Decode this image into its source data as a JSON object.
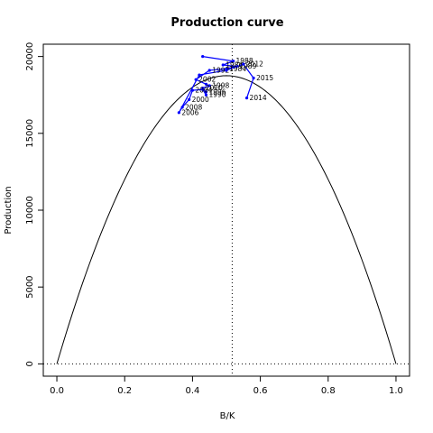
{
  "chart_data": {
    "type": "line",
    "title": "Production curve",
    "xlabel": "B/K",
    "ylabel": "Production",
    "xlim": [
      -0.04,
      1.04
    ],
    "ylim": [
      -800,
      20800
    ],
    "x_ticks": [
      0.0,
      0.2,
      0.4,
      0.6,
      0.8,
      1.0
    ],
    "x_tick_labels": [
      "0.0",
      "0.2",
      "0.4",
      "0.6",
      "0.8",
      "1.0"
    ],
    "y_ticks": [
      0,
      5000,
      10000,
      15000,
      20000
    ],
    "y_tick_labels": [
      "0",
      "5000",
      "10000",
      "15000",
      "20000"
    ],
    "grid": false,
    "reference_lines": {
      "vertical_x": 0.517,
      "horizontal_y": 0
    },
    "production_curve": {
      "shape": "parabola",
      "peak_y": 18750,
      "x_range": [
        0,
        1
      ],
      "color": "#000000"
    },
    "series": [
      {
        "color": "#0000ff",
        "points": [
          {
            "x": 0.43,
            "y": 20000,
            "label": ""
          },
          {
            "x": 0.52,
            "y": 19700,
            "label": "1988"
          },
          {
            "x": 0.49,
            "y": 19450,
            "label": "1986"
          },
          {
            "x": 0.53,
            "y": 19350,
            "label": "1989"
          },
          {
            "x": 0.5,
            "y": 19200,
            "label": "1984"
          },
          {
            "x": 0.45,
            "y": 19100,
            "label": "1992"
          },
          {
            "x": 0.41,
            "y": 18500,
            "label": "2002"
          },
          {
            "x": 0.44,
            "y": 18200,
            "label": ""
          },
          {
            "x": 0.45,
            "y": 18100,
            "label": "1998"
          },
          {
            "x": 0.43,
            "y": 17950,
            "label": "2010"
          },
          {
            "x": 0.44,
            "y": 17700,
            "label": "1996"
          },
          {
            "x": 0.44,
            "y": 17500,
            "label": "1990"
          },
          {
            "x": 0.43,
            "y": 17850,
            "label": ""
          },
          {
            "x": 0.4,
            "y": 17800,
            "label": "2004"
          },
          {
            "x": 0.39,
            "y": 17200,
            "label": "2000"
          },
          {
            "x": 0.37,
            "y": 16700,
            "label": "2008"
          },
          {
            "x": 0.36,
            "y": 16350,
            "label": "2006"
          },
          {
            "x": 0.42,
            "y": 18800,
            "label": ""
          },
          {
            "x": 0.5,
            "y": 19100,
            "label": ""
          },
          {
            "x": 0.55,
            "y": 19500,
            "label": "2012"
          },
          {
            "x": 0.58,
            "y": 18600,
            "label": "2015"
          },
          {
            "x": 0.56,
            "y": 17300,
            "label": "2014"
          }
        ]
      }
    ]
  }
}
